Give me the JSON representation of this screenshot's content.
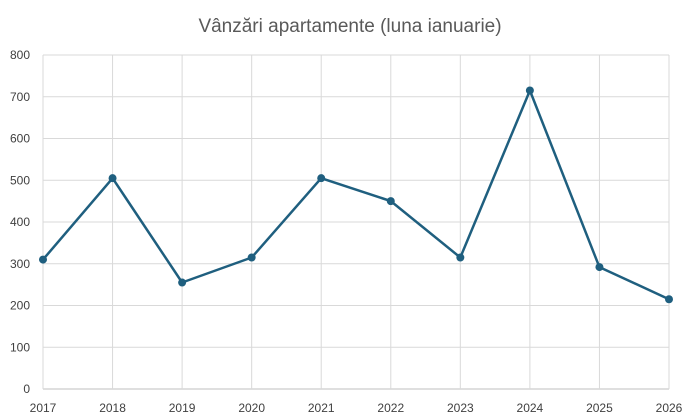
{
  "chart_data": {
    "type": "line",
    "title": "Vânzări apartamente (luna ianuarie)",
    "xlabel": "",
    "ylabel": "",
    "categories": [
      "2017",
      "2018",
      "2019",
      "2020",
      "2021",
      "2022",
      "2023",
      "2024",
      "2025",
      "2026"
    ],
    "series": [
      {
        "values": [
          310,
          505,
          255,
          315,
          505,
          450,
          315,
          715,
          292,
          215
        ]
      }
    ],
    "ylim": [
      0,
      800
    ],
    "yticks": [
      0,
      100,
      200,
      300,
      400,
      500,
      600,
      700,
      800
    ],
    "grid": true,
    "legend": "none",
    "line_color": "#1f5f7f",
    "grid_color": "#d9d9d9"
  }
}
